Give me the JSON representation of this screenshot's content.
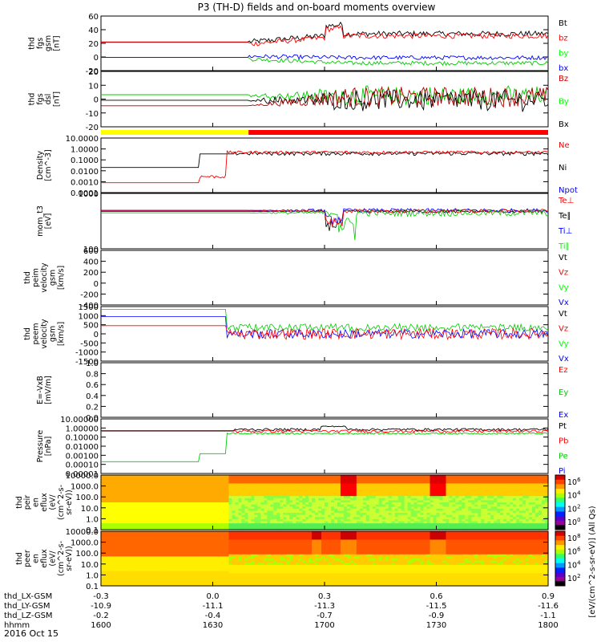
{
  "chart_data": {
    "type": "line",
    "title": "P3 (TH-D) fields and on-board moments overview",
    "date_label": "2016 Oct 15",
    "x_axis": {
      "rows": [
        {
          "label": "thd_LX-GSM",
          "values": [
            "-0.3",
            "0.0",
            "0.3",
            "0.6",
            "0.9"
          ]
        },
        {
          "label": "thd_LY-GSM",
          "values": [
            "-10.9",
            "-11.1",
            "-11.3",
            "-11.5",
            "-11.6"
          ]
        },
        {
          "label": "thd_LZ-GSM",
          "values": [
            "-0.2",
            "-0.4",
            "-0.7",
            "-0.9",
            "-1.1"
          ]
        },
        {
          "label": "hhmm",
          "values": [
            "1600",
            "1630",
            "1700",
            "1730",
            "1800"
          ]
        }
      ],
      "range": [
        1600,
        1800
      ]
    },
    "mode_bar": {
      "segments": [
        {
          "color": "#ffff00",
          "from": 0,
          "to": 0.33
        },
        {
          "color": "#ff0000",
          "from": 0.33,
          "to": 1.0
        }
      ]
    },
    "panels": [
      {
        "ylabel": [
          "thd",
          "fgs",
          "gsm",
          "[nT]"
        ],
        "yticks": [
          "60",
          "40",
          "20",
          "0",
          "-20"
        ],
        "ylim": [
          -20,
          60
        ],
        "scale": "linear",
        "legend": [
          {
            "name": "Bt",
            "color": "#000000"
          },
          {
            "name": "bz",
            "color": "#ff0000"
          },
          {
            "name": "by",
            "color": "#00ff00"
          },
          {
            "name": "bx",
            "color": "#0000ff"
          }
        ]
      },
      {
        "ylabel": [
          "thd",
          "fgs",
          "dsl",
          "[nT]"
        ],
        "yticks": [
          "20",
          "10",
          "0",
          "-10",
          "-20"
        ],
        "ylim": [
          -25,
          25
        ],
        "scale": "linear",
        "legend": [
          {
            "name": "Bz",
            "color": "#cc0000"
          },
          {
            "name": "By",
            "color": "#00ff00"
          },
          {
            "name": "Bx",
            "color": "#000000"
          }
        ]
      },
      {
        "ylabel": [
          "Density",
          "[cm^-3]"
        ],
        "yticks": [
          "10.0000",
          "1.0000",
          "0.1000",
          "0.0100",
          "0.0010",
          "0.0001"
        ],
        "ylim": [
          0.0001,
          10
        ],
        "scale": "log",
        "legend": [
          {
            "name": "Ne",
            "color": "#ff0000"
          },
          {
            "name": "Ni",
            "color": "#000000"
          },
          {
            "name": "Npot",
            "color": "#0000ff"
          }
        ]
      },
      {
        "ylabel": [
          "mom_t3",
          "[eV]"
        ],
        "yticks": [
          "1000",
          "100"
        ],
        "ylim": [
          30,
          10000
        ],
        "scale": "log",
        "legend": [
          {
            "name": "Te⊥",
            "color": "#ff0000"
          },
          {
            "name": "Te∥",
            "color": "#000000"
          },
          {
            "name": "Ti⊥",
            "color": "#0000ff"
          },
          {
            "name": "Ti∥",
            "color": "#00ff00"
          }
        ]
      },
      {
        "ylabel": [
          "thd",
          "peim",
          "velocity",
          "gsm",
          "[km/s]"
        ],
        "yticks": [
          "600",
          "400",
          "200",
          "0",
          "-200",
          "-400"
        ],
        "ylim": [
          -400,
          600
        ],
        "scale": "linear",
        "legend": [
          {
            "name": "Vt",
            "color": "#000000"
          },
          {
            "name": "Vz",
            "color": "#ff0000"
          },
          {
            "name": "Vy",
            "color": "#00ff00"
          },
          {
            "name": "Vx",
            "color": "#0000ff"
          }
        ]
      },
      {
        "ylabel": [
          "thd",
          "peem",
          "velocity",
          "gsm",
          "[km/s]"
        ],
        "yticks": [
          "1500",
          "1000",
          "500",
          "0",
          "-500",
          "-1000",
          "-1500"
        ],
        "ylim": [
          -1500,
          1500
        ],
        "scale": "linear",
        "legend": [
          {
            "name": "Vt",
            "color": "#000000"
          },
          {
            "name": "Vz",
            "color": "#ff0000"
          },
          {
            "name": "Vy",
            "color": "#00ff00"
          },
          {
            "name": "Vx",
            "color": "#0000ff"
          }
        ]
      },
      {
        "ylabel": [
          "E=-VxB",
          "[mV/m]"
        ],
        "yticks": [
          "1.0",
          "0.8",
          "0.6",
          "0.4",
          "0.2",
          "0.0"
        ],
        "ylim": [
          0,
          1
        ],
        "scale": "linear",
        "legend": [
          {
            "name": "Ez",
            "color": "#ff0000"
          },
          {
            "name": "Ey",
            "color": "#00cc00"
          },
          {
            "name": "Ex",
            "color": "#0000ff"
          }
        ]
      },
      {
        "ylabel": [
          "Pressure",
          "[nPa]"
        ],
        "yticks": [
          "10.00000",
          "1.00000",
          "0.10000",
          "0.01000",
          "0.00100",
          "0.00010",
          "0.00001"
        ],
        "ylim": [
          1e-05,
          10
        ],
        "scale": "log",
        "legend": [
          {
            "name": "Pt",
            "color": "#000000"
          },
          {
            "name": "Pb",
            "color": "#ff0000"
          },
          {
            "name": "Pe",
            "color": "#00cc00"
          },
          {
            "name": "Pi",
            "color": "#0000ff"
          }
        ]
      },
      {
        "ylabel": [
          "thd",
          "peir",
          "en",
          "eflux",
          "(eV/",
          "(cm^2-s-",
          "sr-eV))"
        ],
        "yticks": [
          "10000.0",
          "1000.0",
          "100.0",
          "10.0",
          "1.0",
          "0.1"
        ],
        "ylim": [
          0.1,
          10000
        ],
        "scale": "log",
        "kind": "spectrogram"
      },
      {
        "ylabel": [
          "thd",
          "peer",
          "en",
          "eflux",
          "(eV/",
          "(cm^2-s-",
          "sr-eV))"
        ],
        "yticks": [
          "10000.0",
          "1000.0",
          "100.0",
          "10.0",
          "1.0",
          "0.1"
        ],
        "ylim": [
          0.1,
          20000
        ],
        "scale": "log",
        "kind": "spectrogram"
      }
    ],
    "colorbar": {
      "label": "[eV/(cm^2-s-sr-eV)] (All Qs)",
      "upper_ticks": [
        "10^6",
        "10^4",
        "10^2",
        "10^0"
      ],
      "lower_ticks": [
        "10^8",
        "10^6",
        "10^4",
        "10^2"
      ]
    }
  }
}
